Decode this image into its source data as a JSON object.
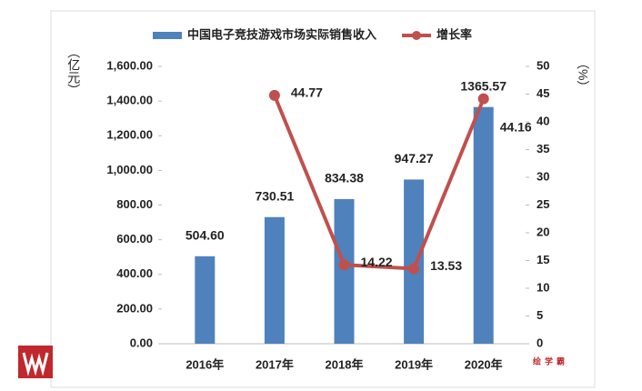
{
  "chart_data": {
    "type": "bar_line",
    "categories": [
      "2016年",
      "2017年",
      "2018年",
      "2019年",
      "2020年"
    ],
    "series": [
      {
        "name": "中国电子竞技游戏市场实际销售收入",
        "color": "#4f81bd",
        "type": "bar",
        "values": [
          504.6,
          730.51,
          834.38,
          947.27,
          1365.57
        ],
        "value_labels": [
          "504.60",
          "730.51",
          "834.38",
          "947.27",
          "1365.57"
        ]
      },
      {
        "name": "增长率",
        "color": "#c0504d",
        "type": "line",
        "axis": "y2",
        "values": [
          null,
          44.77,
          14.22,
          13.53,
          44.16
        ]
      }
    ],
    "ylabel": "（亿元）",
    "y2label": "（%）",
    "ylim": [
      0,
      1600
    ],
    "yticks": [
      {
        "value": 0,
        "label": "0.00"
      },
      {
        "value": 200,
        "label": "200.00"
      },
      {
        "value": 400,
        "label": "400.00"
      },
      {
        "value": 600,
        "label": "600.00"
      },
      {
        "value": 800,
        "label": "800.00"
      },
      {
        "value": 1000,
        "label": "1,000.00"
      },
      {
        "value": 1200,
        "label": "1,200.00"
      },
      {
        "value": 1400,
        "label": "1,400.00"
      },
      {
        "value": 1600,
        "label": "1,600.00"
      }
    ],
    "y2lim": [
      0,
      50
    ],
    "y2ticks": [
      0,
      5,
      10,
      15,
      20,
      25,
      30,
      35,
      40,
      45,
      50
    ],
    "legend": "top",
    "watermark": "绘学霸"
  }
}
